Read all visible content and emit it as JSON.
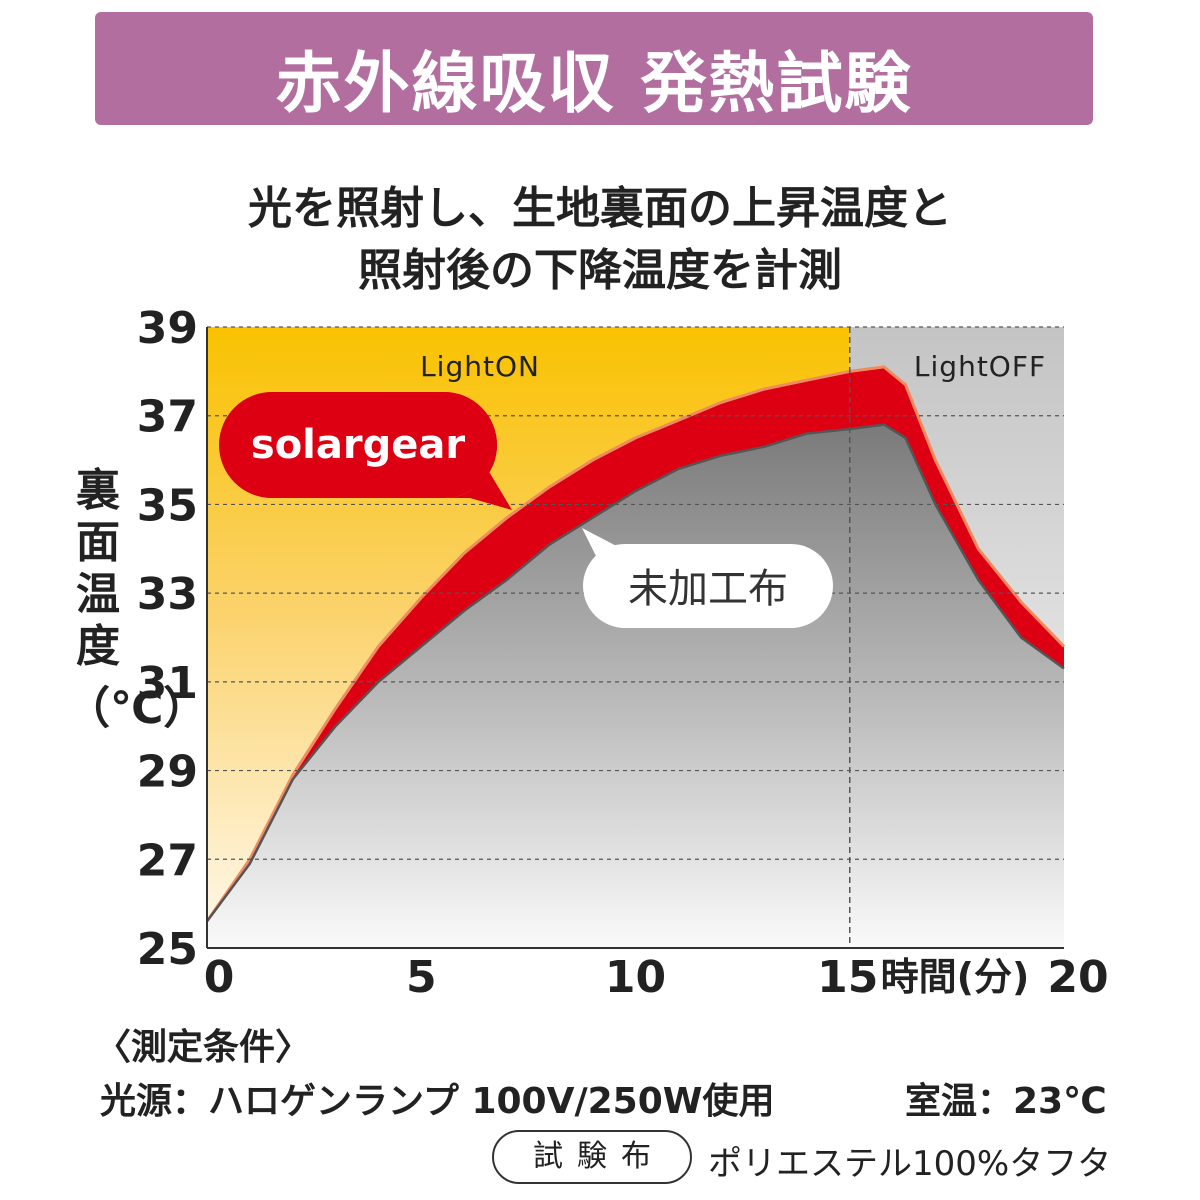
{
  "title": "赤外線吸収 発熱試験",
  "subtitle_line1": "光を照射し、生地裏面の上昇温度と",
  "subtitle_line2": "照射後の下降温度を計測",
  "colors": {
    "banner": "#b16e9f",
    "light_on_bg": "#f9c200",
    "light_off_bg": "#c8c8c8",
    "solargear": "#dc0012",
    "untreated": "#8a8a8a"
  },
  "chart_data": {
    "type": "area",
    "ylabel_text": "裏面温度",
    "ylabel_unit": "（℃）",
    "xlabel": "時間(分)",
    "ylim": [
      25,
      39
    ],
    "xlim": [
      0,
      20
    ],
    "yticks": [
      39,
      37,
      35,
      33,
      31,
      29,
      27,
      25
    ],
    "xticks": [
      0,
      5,
      10,
      15,
      20
    ],
    "grid": true,
    "regions": [
      {
        "label": "LightON",
        "from": 0,
        "to": 15
      },
      {
        "label": "LightOFF",
        "from": 15,
        "to": 20
      }
    ],
    "series": [
      {
        "name": "solargear",
        "x": [
          0,
          1,
          2,
          3,
          4,
          5,
          6,
          7,
          8,
          9,
          10,
          11,
          12,
          13,
          14,
          15,
          15.8,
          16.3,
          17,
          18,
          19,
          20
        ],
        "values": [
          25.6,
          27.0,
          28.9,
          30.4,
          31.8,
          32.9,
          33.9,
          34.7,
          35.4,
          36.0,
          36.5,
          36.9,
          37.3,
          37.6,
          37.8,
          38.0,
          38.1,
          37.7,
          36.0,
          34.0,
          32.8,
          31.8
        ]
      },
      {
        "name": "未加工布",
        "x": [
          0,
          1,
          2,
          3,
          4,
          5,
          6,
          7,
          8,
          9,
          10,
          11,
          12,
          13,
          14,
          15,
          15.8,
          16.3,
          17,
          18,
          19,
          20
        ],
        "values": [
          25.6,
          26.9,
          28.8,
          30.0,
          31.0,
          31.8,
          32.6,
          33.3,
          34.1,
          34.7,
          35.3,
          35.8,
          36.1,
          36.3,
          36.6,
          36.7,
          36.8,
          36.5,
          35.0,
          33.3,
          32.0,
          31.3
        ]
      }
    ]
  },
  "conditions": {
    "heading": "〈測定条件〉",
    "light_source": "光源：ハロゲンランプ 100V/250W使用",
    "room_temp": "室温：23℃",
    "fabric_label": "試験布",
    "fabric_value": "ポリエステル100%タフタ"
  }
}
